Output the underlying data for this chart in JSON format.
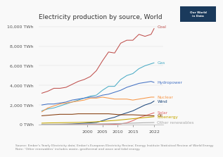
{
  "title": "Electricity production by source, World",
  "years": [
    1985,
    1987,
    1989,
    1991,
    1993,
    1995,
    1997,
    1999,
    2001,
    2003,
    2005,
    2007,
    2009,
    2011,
    2013,
    2015,
    2017,
    2019,
    2021,
    2022
  ],
  "series": {
    "Coal": {
      "color": "#c0504d",
      "values": [
        3200,
        3400,
        3700,
        3700,
        3800,
        4100,
        4400,
        4600,
        4900,
        5500,
        6500,
        7400,
        7300,
        8300,
        8600,
        8600,
        9200,
        9000,
        9200,
        9800
      ]
    },
    "Gas": {
      "color": "#4bacc6",
      "values": [
        1400,
        1600,
        1700,
        1900,
        2100,
        2300,
        2500,
        2700,
        2900,
        3000,
        3500,
        3900,
        3900,
        4600,
        5000,
        5200,
        5700,
        6000,
        6200,
        6300
      ]
    },
    "Hydropower": {
      "color": "#4472c4",
      "values": [
        2000,
        2100,
        2100,
        2200,
        2300,
        2500,
        2600,
        2700,
        2800,
        2800,
        3000,
        3100,
        3300,
        3500,
        3800,
        4000,
        4200,
        4300,
        4400,
        4300
      ]
    },
    "Nuclear": {
      "color": "#f79646",
      "values": [
        1300,
        1700,
        1900,
        2100,
        2200,
        2300,
        2400,
        2500,
        2700,
        2700,
        2800,
        2700,
        2600,
        2600,
        2600,
        2500,
        2600,
        2700,
        2800,
        2800
      ]
    },
    "Wind": {
      "color": "#1f497d",
      "values": [
        10,
        15,
        20,
        30,
        40,
        60,
        100,
        130,
        170,
        220,
        400,
        600,
        750,
        1000,
        1200,
        1400,
        1700,
        2000,
        2200,
        2400
      ]
    },
    "Solar": {
      "color": "#e06666",
      "values": [
        0,
        0,
        0,
        0,
        1,
        2,
        4,
        5,
        6,
        8,
        15,
        20,
        30,
        70,
        180,
        400,
        700,
        900,
        1100,
        1200
      ]
    },
    "Oil": {
      "color": "#843c0c",
      "values": [
        900,
        950,
        1000,
        1050,
        1050,
        1050,
        1100,
        1100,
        1100,
        1100,
        1100,
        1100,
        1050,
        1000,
        1000,
        1000,
        970,
        950,
        900,
        900
      ]
    },
    "Bioenergy": {
      "color": "#c6a800",
      "values": [
        150,
        170,
        180,
        190,
        200,
        210,
        220,
        240,
        260,
        290,
        330,
        380,
        420,
        480,
        540,
        600,
        660,
        720,
        770,
        800
      ]
    },
    "Other renewables": {
      "color": "#aaaaaa",
      "values": [
        30,
        35,
        40,
        45,
        50,
        55,
        60,
        65,
        70,
        75,
        80,
        90,
        100,
        110,
        130,
        150,
        170,
        190,
        200,
        210
      ]
    }
  },
  "source_text": "Source: Ember's Yearly Electricity data; Ember's European Electricity Review; Energy Institute Statistical Review of World Energy\nNote: 'Other renewables' includes waste, geothermal and wave and tidal energy.",
  "background_color": "#f9f9f9",
  "title_fontsize": 6.5,
  "axis_fontsize": 4.5,
  "label_fontsize": 4.2,
  "source_fontsize": 3.2,
  "xlim": [
    1984,
    2025
  ],
  "ylim": [
    0,
    10500
  ],
  "yticks": [
    0,
    2000,
    4000,
    6000,
    8000,
    10000
  ],
  "ytick_labels": [
    "0 TWh",
    "2,000 TWh",
    "4,000 TWh",
    "6,000 TWh",
    "8,000 TWh",
    "10,000 TWh"
  ],
  "xticks": [
    2000,
    2005,
    2010,
    2015,
    2022
  ],
  "logo_bg": "#1a3a5c",
  "logo_text": "Our World\nin Data"
}
